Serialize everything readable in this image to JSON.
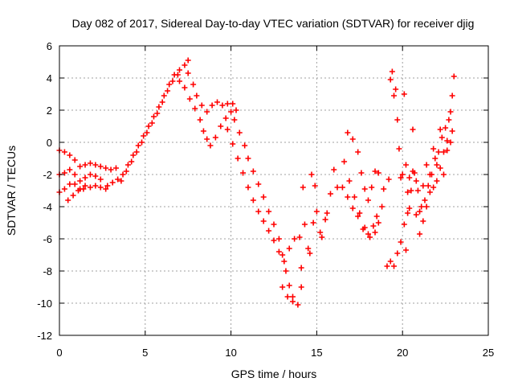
{
  "chart_data": {
    "type": "scatter",
    "title": "Day 082 of 2017, Sidereal Day-to-day VTEC variation (SDTVAR) for receiver djig",
    "xlabel": "GPS time / hours",
    "ylabel": "SDTVAR / TECUs",
    "xlim": [
      0,
      25
    ],
    "ylim": [
      -12,
      6
    ],
    "xticks": [
      0,
      5,
      10,
      15,
      20,
      25
    ],
    "yticks": [
      -12,
      -10,
      -8,
      -6,
      -4,
      -2,
      0,
      2,
      4,
      6
    ],
    "grid": true,
    "marker": "+",
    "color": "#ff0000",
    "series": [
      {
        "points": [
          [
            0.0,
            -0.5
          ],
          [
            0.3,
            -0.6
          ],
          [
            0.6,
            -0.8
          ],
          [
            0.9,
            -1.1
          ],
          [
            1.2,
            -1.5
          ],
          [
            1.5,
            -1.4
          ],
          [
            1.8,
            -1.3
          ],
          [
            2.1,
            -1.4
          ],
          [
            2.4,
            -1.5
          ],
          [
            2.7,
            -1.6
          ],
          [
            3.0,
            -1.7
          ],
          [
            3.3,
            -1.6
          ],
          [
            0.0,
            -2.0
          ],
          [
            0.3,
            -1.9
          ],
          [
            0.6,
            -1.7
          ],
          [
            0.9,
            -2.0
          ],
          [
            1.2,
            -2.4
          ],
          [
            1.5,
            -2.2
          ],
          [
            1.8,
            -2.0
          ],
          [
            2.1,
            -2.1
          ],
          [
            2.4,
            -2.3
          ],
          [
            0.0,
            -3.1
          ],
          [
            0.3,
            -2.9
          ],
          [
            0.6,
            -2.6
          ],
          [
            0.9,
            -2.6
          ],
          [
            1.2,
            -2.9
          ],
          [
            1.5,
            -2.7
          ],
          [
            1.8,
            -2.8
          ],
          [
            2.1,
            -2.7
          ],
          [
            2.4,
            -2.8
          ],
          [
            2.7,
            -2.9
          ],
          [
            0.5,
            -3.6
          ],
          [
            0.8,
            -3.3
          ],
          [
            1.1,
            -3.0
          ],
          [
            1.4,
            -2.9
          ],
          [
            2.8,
            -2.7
          ],
          [
            3.1,
            -2.5
          ],
          [
            3.4,
            -2.3
          ],
          [
            3.7,
            -2.0
          ],
          [
            4.0,
            -1.4
          ],
          [
            4.3,
            -0.8
          ],
          [
            4.6,
            -0.2
          ],
          [
            4.9,
            0.4
          ],
          [
            5.2,
            1.0
          ],
          [
            5.5,
            1.6
          ],
          [
            5.8,
            2.2
          ],
          [
            6.1,
            2.9
          ],
          [
            6.4,
            3.6
          ],
          [
            6.7,
            4.2
          ],
          [
            7.0,
            4.5
          ],
          [
            7.3,
            4.8
          ],
          [
            7.5,
            5.1
          ],
          [
            3.6,
            -2.4
          ],
          [
            3.9,
            -1.8
          ],
          [
            4.2,
            -1.2
          ],
          [
            4.5,
            -0.6
          ],
          [
            4.8,
            0.0
          ],
          [
            5.1,
            0.6
          ],
          [
            5.4,
            1.2
          ],
          [
            5.7,
            1.8
          ],
          [
            6.0,
            2.5
          ],
          [
            6.3,
            3.2
          ],
          [
            6.6,
            3.8
          ],
          [
            6.9,
            4.2
          ],
          [
            7.0,
            3.8
          ],
          [
            7.3,
            3.4
          ],
          [
            7.6,
            2.7
          ],
          [
            7.9,
            2.1
          ],
          [
            8.2,
            1.4
          ],
          [
            8.4,
            0.7
          ],
          [
            8.6,
            0.2
          ],
          [
            8.8,
            -0.2
          ],
          [
            9.1,
            0.3
          ],
          [
            9.4,
            1.0
          ],
          [
            9.7,
            1.5
          ],
          [
            10.0,
            1.9
          ],
          [
            7.5,
            4.3
          ],
          [
            7.8,
            3.6
          ],
          [
            8.0,
            2.9
          ],
          [
            8.3,
            2.3
          ],
          [
            8.6,
            1.9
          ],
          [
            8.9,
            2.3
          ],
          [
            9.2,
            2.5
          ],
          [
            9.5,
            2.3
          ],
          [
            9.8,
            2.4
          ],
          [
            10.1,
            2.4
          ],
          [
            10.3,
            2.0
          ],
          [
            10.2,
            1.4
          ],
          [
            10.5,
            0.6
          ],
          [
            10.8,
            -0.2
          ],
          [
            11.0,
            -1.0
          ],
          [
            11.3,
            -1.8
          ],
          [
            11.6,
            -2.6
          ],
          [
            11.9,
            -3.4
          ],
          [
            12.2,
            -4.3
          ],
          [
            12.5,
            -5.1
          ],
          [
            12.8,
            -6.0
          ],
          [
            13.0,
            -7.0
          ],
          [
            13.2,
            -8.0
          ],
          [
            13.4,
            -8.9
          ],
          [
            13.6,
            -9.6
          ],
          [
            13.9,
            -10.1
          ],
          [
            9.8,
            0.8
          ],
          [
            10.1,
            -0.1
          ],
          [
            10.4,
            -1.0
          ],
          [
            10.7,
            -1.9
          ],
          [
            11.0,
            -2.8
          ],
          [
            11.3,
            -3.6
          ],
          [
            11.6,
            -4.3
          ],
          [
            11.9,
            -4.9
          ],
          [
            12.2,
            -5.5
          ],
          [
            12.5,
            -6.1
          ],
          [
            12.8,
            -6.8
          ],
          [
            13.1,
            -7.4
          ],
          [
            13.4,
            -6.6
          ],
          [
            13.7,
            -6.0
          ],
          [
            13.0,
            -9.0
          ],
          [
            13.3,
            -9.6
          ],
          [
            13.6,
            -9.9
          ],
          [
            14.0,
            -5.9
          ],
          [
            14.1,
            -7.8
          ],
          [
            14.1,
            -9.0
          ],
          [
            14.2,
            -2.8
          ],
          [
            14.3,
            -5.1
          ],
          [
            14.5,
            -6.6
          ],
          [
            14.6,
            -6.9
          ],
          [
            14.7,
            -2.0
          ],
          [
            14.8,
            -5.0
          ],
          [
            14.9,
            -2.7
          ],
          [
            15.0,
            -4.3
          ],
          [
            15.2,
            -5.6
          ],
          [
            15.3,
            -5.9
          ],
          [
            15.5,
            -4.8
          ],
          [
            15.6,
            -4.4
          ],
          [
            15.8,
            -3.2
          ],
          [
            16.0,
            -1.7
          ],
          [
            16.2,
            -2.8
          ],
          [
            16.5,
            -2.8
          ],
          [
            16.8,
            -3.4
          ],
          [
            17.1,
            -4.1
          ],
          [
            17.4,
            -4.6
          ],
          [
            17.7,
            -5.4
          ],
          [
            18.0,
            -5.7
          ],
          [
            18.3,
            -5.2
          ],
          [
            18.5,
            -4.6
          ],
          [
            16.8,
            0.6
          ],
          [
            17.1,
            0.2
          ],
          [
            17.4,
            -0.6
          ],
          [
            17.6,
            -1.9
          ],
          [
            17.8,
            -2.9
          ],
          [
            18.0,
            -3.6
          ],
          [
            18.2,
            -2.8
          ],
          [
            18.4,
            -1.8
          ],
          [
            18.6,
            -1.9
          ],
          [
            18.8,
            -4.0
          ],
          [
            16.6,
            -1.2
          ],
          [
            16.9,
            -2.4
          ],
          [
            17.2,
            -3.4
          ],
          [
            17.5,
            -4.4
          ],
          [
            17.8,
            -5.3
          ],
          [
            18.1,
            -5.9
          ],
          [
            18.4,
            -5.6
          ],
          [
            18.6,
            -5.0
          ],
          [
            18.9,
            -2.9
          ],
          [
            19.2,
            -2.3
          ],
          [
            19.3,
            3.9
          ],
          [
            19.4,
            4.4
          ],
          [
            19.5,
            2.9
          ],
          [
            19.6,
            3.3
          ],
          [
            19.7,
            1.4
          ],
          [
            19.8,
            -0.4
          ],
          [
            19.9,
            -2.2
          ],
          [
            20.0,
            -2.0
          ],
          [
            20.1,
            3.0
          ],
          [
            20.2,
            -6.7
          ],
          [
            20.3,
            -3.1
          ],
          [
            20.4,
            -4.1
          ],
          [
            20.6,
            0.8
          ],
          [
            20.8,
            -2.4
          ],
          [
            21.0,
            -4.3
          ],
          [
            21.2,
            -2.7
          ],
          [
            21.4,
            -1.4
          ],
          [
            21.6,
            -3.1
          ],
          [
            21.8,
            -0.4
          ],
          [
            22.0,
            -1.4
          ],
          [
            22.2,
            0.8
          ],
          [
            22.4,
            -0.6
          ],
          [
            22.6,
            0.1
          ],
          [
            22.8,
            1.9
          ],
          [
            22.9,
            2.9
          ],
          [
            23.0,
            4.1
          ],
          [
            19.1,
            -7.7
          ],
          [
            19.3,
            -7.4
          ],
          [
            19.5,
            -7.7
          ],
          [
            19.7,
            -6.9
          ],
          [
            19.9,
            -6.2
          ],
          [
            20.1,
            -5.1
          ],
          [
            20.3,
            -4.4
          ],
          [
            20.5,
            -3.0
          ],
          [
            20.7,
            -1.9
          ],
          [
            20.9,
            -3.0
          ],
          [
            21.1,
            -4.0
          ],
          [
            21.3,
            -3.6
          ],
          [
            21.5,
            -2.7
          ],
          [
            21.7,
            -2.0
          ],
          [
            21.9,
            -1.0
          ],
          [
            22.1,
            -0.6
          ],
          [
            22.3,
            0.3
          ],
          [
            22.5,
            0.9
          ],
          [
            22.7,
            1.4
          ],
          [
            22.9,
            0.7
          ],
          [
            20.2,
            -1.4
          ],
          [
            20.4,
            -2.2
          ],
          [
            20.6,
            -1.8
          ],
          [
            20.8,
            -4.5
          ],
          [
            21.0,
            -5.7
          ],
          [
            21.2,
            -4.9
          ],
          [
            21.4,
            -4.0
          ],
          [
            21.6,
            -2.0
          ],
          [
            21.8,
            -2.8
          ],
          [
            22.0,
            -2.4
          ],
          [
            22.2,
            -1.6
          ],
          [
            22.4,
            -2.0
          ],
          [
            22.6,
            -0.5
          ],
          [
            22.8,
            0.0
          ]
        ]
      }
    ]
  }
}
